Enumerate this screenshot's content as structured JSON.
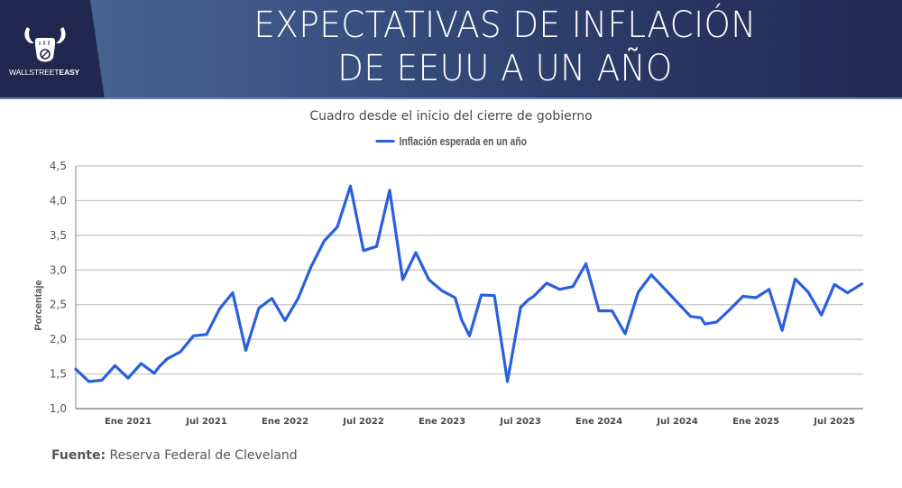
{
  "header": {
    "brand": {
      "name_light": "WALLSTREET",
      "name_bold": "EASY"
    },
    "title_lines": [
      "EXPECTATIVAS DE INFLACIÓN",
      "DE EEUU A UN AÑO"
    ]
  },
  "footer": {
    "source_label": "Fuente:",
    "source_value": "Reserva Federal de Cleveland"
  },
  "chart_data": {
    "type": "line",
    "title": "Cuadro desde el inicio del cierre de gobierno",
    "xlabel": "",
    "ylabel": "Porcentaje",
    "legend": {
      "position": "top-center"
    },
    "grid": true,
    "ylim": [
      1.0,
      4.5
    ],
    "yticks": [
      1.0,
      1.5,
      2.0,
      2.5,
      3.0,
      3.5,
      4.0,
      4.5
    ],
    "ytick_labels": [
      "1,0",
      "1,5",
      "2,0",
      "2,5",
      "3,0",
      "3,5",
      "4,0",
      "4,5"
    ],
    "x_unit": "months since Sep 2020",
    "xlim": [
      0,
      60.2
    ],
    "xticks": [
      4,
      10,
      16,
      22,
      28,
      34,
      40,
      46,
      52,
      58
    ],
    "xtick_labels": [
      "Ene 2021",
      "Jul 2021",
      "Ene 2022",
      "Jul 2022",
      "Ene 2023",
      "Jul 2023",
      "Ene 2024",
      "Jul 2024",
      "Ene 2025",
      "Jul 2025"
    ],
    "series": [
      {
        "name": "Inflación esperada en un año",
        "color": "#2a5fe0",
        "x": [
          0,
          1,
          2,
          3,
          4,
          5,
          6,
          6.4,
          7,
          8,
          9,
          10,
          11,
          12,
          13,
          14,
          15,
          16,
          17,
          18,
          19,
          20,
          21,
          22,
          23,
          24,
          25,
          26,
          27,
          28,
          29,
          29.5,
          30.1,
          31,
          32,
          33,
          34,
          34.6,
          35,
          36,
          37,
          38,
          39,
          40,
          41,
          42,
          43,
          44,
          45,
          46,
          47,
          47.8,
          48.1,
          49,
          50,
          51,
          52,
          53,
          54,
          55,
          56,
          57,
          58,
          59,
          60.1
        ],
        "values": [
          1.57,
          1.39,
          1.41,
          1.62,
          1.44,
          1.65,
          1.51,
          1.61,
          1.72,
          1.82,
          2.05,
          2.07,
          2.44,
          2.67,
          1.84,
          2.45,
          2.59,
          2.27,
          2.59,
          3.05,
          3.42,
          3.62,
          4.21,
          3.28,
          3.34,
          4.15,
          2.86,
          3.25,
          2.86,
          2.7,
          2.6,
          2.28,
          2.05,
          2.64,
          2.63,
          1.39,
          2.46,
          2.57,
          2.62,
          2.81,
          2.72,
          2.76,
          3.09,
          2.41,
          2.41,
          2.08,
          2.68,
          2.93,
          2.73,
          2.53,
          2.33,
          2.31,
          2.22,
          2.25,
          2.43,
          2.62,
          2.6,
          2.72,
          2.13,
          2.87,
          2.68,
          2.35,
          2.79,
          2.67,
          2.8
        ]
      }
    ]
  }
}
